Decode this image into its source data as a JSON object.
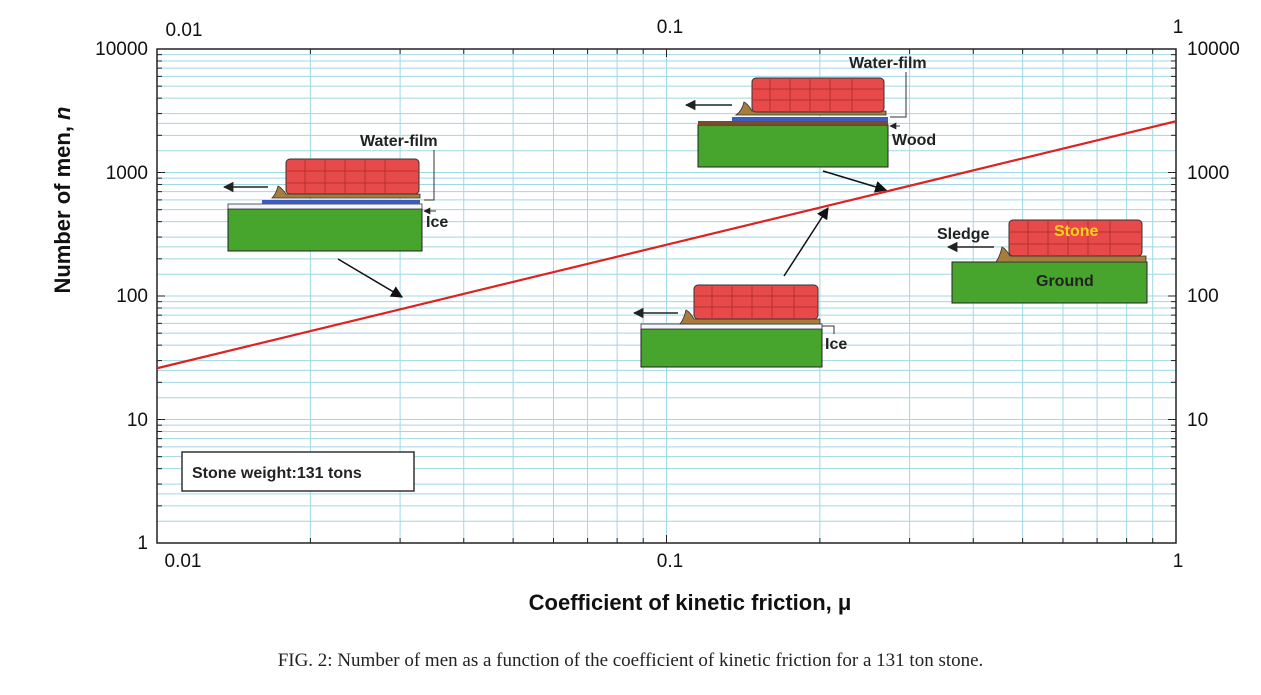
{
  "caption": "FIG. 2: Number of men as a function of the coefficient of kinetic friction for a 131 ton stone.",
  "chart_data": {
    "type": "line",
    "title": "",
    "xlabel": "Coefficient of kinetic friction, μ",
    "ylabel_text": "Number of men, ",
    "ylabel_var": "n",
    "x_scale": "log",
    "y_scale": "log",
    "xlim": [
      0.01,
      1
    ],
    "ylim": [
      1,
      10000
    ],
    "grid": true,
    "x_ticks": [
      "0.01",
      "0.1",
      "1"
    ],
    "x_ticks_top": [
      "0.01",
      "0.1",
      "1"
    ],
    "y_ticks": [
      "1",
      "10",
      "100",
      "1000",
      "10000"
    ],
    "y_ticks_right": [
      "10",
      "100",
      "1000",
      "10000"
    ],
    "series": [
      {
        "color": "#dd2222",
        "x": [
          0.01,
          1
        ],
        "y": [
          26,
          2600
        ]
      }
    ],
    "annotations": {
      "weight_box": "Stone weight:131 tons",
      "panel1": {
        "top_label": "Water-film",
        "side_label": "Ice"
      },
      "panel2": {
        "top_label": "Water-film",
        "side_label": "Wood"
      },
      "panel3": {
        "side_label": "Ice"
      },
      "panel4": {
        "sledge": "Sledge",
        "stone": "Stone",
        "ground": "Ground"
      }
    }
  },
  "colors": {
    "grid": "#9fd8e6",
    "line": "#dd2222",
    "stone": "#e84a4a",
    "ground": "#47a52d",
    "sledge": "#a87c3a",
    "stone_label": "#ffd21a"
  }
}
